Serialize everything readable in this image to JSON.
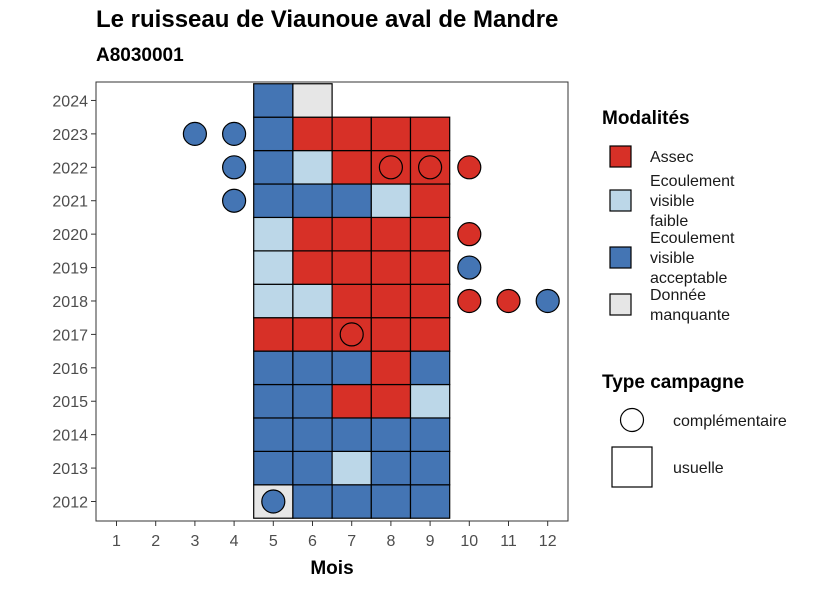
{
  "title": "Le ruisseau de Viaunoue aval de Mandre",
  "subtitle": "A8030001",
  "chart_data": {
    "type": "heatmap",
    "xlabel": "Mois",
    "ylabel": "",
    "x": [
      1,
      2,
      3,
      4,
      5,
      6,
      7,
      8,
      9,
      10,
      11,
      12
    ],
    "y": [
      2012,
      2013,
      2014,
      2015,
      2016,
      2017,
      2018,
      2019,
      2020,
      2021,
      2022,
      2023,
      2024
    ],
    "grid": false,
    "legend_position": "right",
    "categories": {
      "assec": {
        "label": "Assec",
        "color": "#d73027"
      },
      "faible": {
        "label": "Ecoulement visible faible",
        "color": "#bcd7e8"
      },
      "acceptable": {
        "label": "Ecoulement visible acceptable",
        "color": "#4475b4"
      },
      "manquante": {
        "label": "Donnée manquante",
        "color": "#e6e6e6"
      }
    },
    "legend_modalites": {
      "title": "Modalités",
      "items": [
        {
          "key": "assec",
          "lines": [
            "Assec"
          ]
        },
        {
          "key": "faible",
          "lines": [
            "Ecoulement",
            "visible",
            "faible"
          ]
        },
        {
          "key": "acceptable",
          "lines": [
            "Ecoulement",
            "visible",
            "acceptable"
          ]
        },
        {
          "key": "manquante",
          "lines": [
            "Donnée",
            "manquante"
          ]
        }
      ]
    },
    "legend_campagne": {
      "title": "Type campagne",
      "items": [
        {
          "shape": "circle",
          "label": "complémentaire"
        },
        {
          "shape": "square",
          "label": "usuelle"
        }
      ]
    },
    "usuelle": [
      {
        "year": 2012,
        "month": 5,
        "value": "manquante"
      },
      {
        "year": 2012,
        "month": 6,
        "value": "acceptable"
      },
      {
        "year": 2012,
        "month": 7,
        "value": "acceptable"
      },
      {
        "year": 2012,
        "month": 8,
        "value": "acceptable"
      },
      {
        "year": 2012,
        "month": 9,
        "value": "acceptable"
      },
      {
        "year": 2013,
        "month": 5,
        "value": "acceptable"
      },
      {
        "year": 2013,
        "month": 6,
        "value": "acceptable"
      },
      {
        "year": 2013,
        "month": 7,
        "value": "faible"
      },
      {
        "year": 2013,
        "month": 8,
        "value": "acceptable"
      },
      {
        "year": 2013,
        "month": 9,
        "value": "acceptable"
      },
      {
        "year": 2014,
        "month": 5,
        "value": "acceptable"
      },
      {
        "year": 2014,
        "month": 6,
        "value": "acceptable"
      },
      {
        "year": 2014,
        "month": 7,
        "value": "acceptable"
      },
      {
        "year": 2014,
        "month": 8,
        "value": "acceptable"
      },
      {
        "year": 2014,
        "month": 9,
        "value": "acceptable"
      },
      {
        "year": 2015,
        "month": 5,
        "value": "acceptable"
      },
      {
        "year": 2015,
        "month": 6,
        "value": "acceptable"
      },
      {
        "year": 2015,
        "month": 7,
        "value": "assec"
      },
      {
        "year": 2015,
        "month": 8,
        "value": "assec"
      },
      {
        "year": 2015,
        "month": 9,
        "value": "faible"
      },
      {
        "year": 2016,
        "month": 5,
        "value": "acceptable"
      },
      {
        "year": 2016,
        "month": 6,
        "value": "acceptable"
      },
      {
        "year": 2016,
        "month": 7,
        "value": "acceptable"
      },
      {
        "year": 2016,
        "month": 8,
        "value": "assec"
      },
      {
        "year": 2016,
        "month": 9,
        "value": "acceptable"
      },
      {
        "year": 2017,
        "month": 5,
        "value": "assec"
      },
      {
        "year": 2017,
        "month": 6,
        "value": "assec"
      },
      {
        "year": 2017,
        "month": 7,
        "value": "assec"
      },
      {
        "year": 2017,
        "month": 8,
        "value": "assec"
      },
      {
        "year": 2017,
        "month": 9,
        "value": "assec"
      },
      {
        "year": 2018,
        "month": 5,
        "value": "faible"
      },
      {
        "year": 2018,
        "month": 6,
        "value": "faible"
      },
      {
        "year": 2018,
        "month": 7,
        "value": "assec"
      },
      {
        "year": 2018,
        "month": 8,
        "value": "assec"
      },
      {
        "year": 2018,
        "month": 9,
        "value": "assec"
      },
      {
        "year": 2019,
        "month": 5,
        "value": "faible"
      },
      {
        "year": 2019,
        "month": 6,
        "value": "assec"
      },
      {
        "year": 2019,
        "month": 7,
        "value": "assec"
      },
      {
        "year": 2019,
        "month": 8,
        "value": "assec"
      },
      {
        "year": 2019,
        "month": 9,
        "value": "assec"
      },
      {
        "year": 2020,
        "month": 5,
        "value": "faible"
      },
      {
        "year": 2020,
        "month": 6,
        "value": "assec"
      },
      {
        "year": 2020,
        "month": 7,
        "value": "assec"
      },
      {
        "year": 2020,
        "month": 8,
        "value": "assec"
      },
      {
        "year": 2020,
        "month": 9,
        "value": "assec"
      },
      {
        "year": 2021,
        "month": 5,
        "value": "acceptable"
      },
      {
        "year": 2021,
        "month": 6,
        "value": "acceptable"
      },
      {
        "year": 2021,
        "month": 7,
        "value": "acceptable"
      },
      {
        "year": 2021,
        "month": 8,
        "value": "faible"
      },
      {
        "year": 2021,
        "month": 9,
        "value": "assec"
      },
      {
        "year": 2022,
        "month": 5,
        "value": "acceptable"
      },
      {
        "year": 2022,
        "month": 6,
        "value": "faible"
      },
      {
        "year": 2022,
        "month": 7,
        "value": "assec"
      },
      {
        "year": 2022,
        "month": 8,
        "value": "assec"
      },
      {
        "year": 2022,
        "month": 9,
        "value": "assec"
      },
      {
        "year": 2023,
        "month": 5,
        "value": "acceptable"
      },
      {
        "year": 2023,
        "month": 6,
        "value": "assec"
      },
      {
        "year": 2023,
        "month": 7,
        "value": "assec"
      },
      {
        "year": 2023,
        "month": 8,
        "value": "assec"
      },
      {
        "year": 2023,
        "month": 9,
        "value": "assec"
      },
      {
        "year": 2024,
        "month": 5,
        "value": "acceptable"
      },
      {
        "year": 2024,
        "month": 6,
        "value": "manquante"
      }
    ],
    "complementaire": [
      {
        "year": 2012,
        "month": 5,
        "value": "acceptable"
      },
      {
        "year": 2017,
        "month": 7,
        "value": "assec"
      },
      {
        "year": 2018,
        "month": 10,
        "value": "assec"
      },
      {
        "year": 2018,
        "month": 11,
        "value": "assec"
      },
      {
        "year": 2018,
        "month": 12,
        "value": "acceptable"
      },
      {
        "year": 2019,
        "month": 10,
        "value": "acceptable"
      },
      {
        "year": 2020,
        "month": 10,
        "value": "assec"
      },
      {
        "year": 2021,
        "month": 4,
        "value": "acceptable"
      },
      {
        "year": 2022,
        "month": 4,
        "value": "acceptable"
      },
      {
        "year": 2022,
        "month": 8,
        "value": "assec"
      },
      {
        "year": 2022,
        "month": 9,
        "value": "assec"
      },
      {
        "year": 2022,
        "month": 10,
        "value": "assec"
      },
      {
        "year": 2023,
        "month": 3,
        "value": "acceptable"
      },
      {
        "year": 2023,
        "month": 4,
        "value": "acceptable"
      }
    ]
  }
}
